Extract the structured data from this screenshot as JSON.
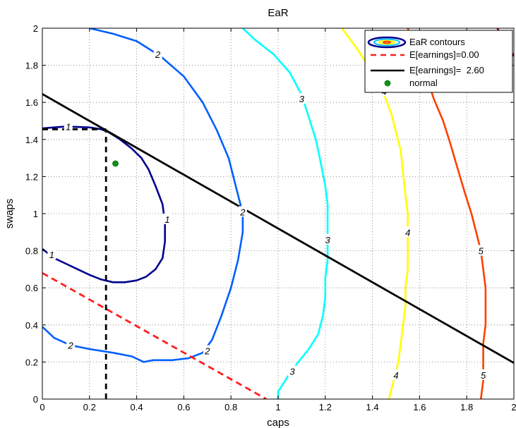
{
  "chart_data": {
    "type": "line",
    "title": "EaR",
    "xlabel": "caps",
    "ylabel": "swaps",
    "xlim": [
      0,
      2
    ],
    "ylim": [
      0,
      2
    ],
    "x_ticks": [
      "0",
      "0.2",
      "0.4",
      "0.6",
      "0.8",
      "1",
      "1.2",
      "1.4",
      "1.6",
      "1.8",
      "2"
    ],
    "y_ticks": [
      "0",
      "0.2",
      "0.4",
      "0.6",
      "0.8",
      "1",
      "1.2",
      "1.4",
      "1.6",
      "1.8",
      "2"
    ],
    "grid": true,
    "legend_position": "top-right",
    "legend": [
      {
        "label": "EaR contours",
        "kind": "contour-icon"
      },
      {
        "label": "E[earnings]=0.00",
        "kind": "dashed",
        "color": "#ff1e1e"
      },
      {
        "label": "E[earnings]=  2.60",
        "kind": "solid",
        "color": "#000000"
      },
      {
        "label": "normal",
        "kind": "dot",
        "color": "#168a1c"
      }
    ],
    "contours": [
      {
        "level": "1",
        "color": "#00008f",
        "points": [
          [
            0,
            0.81
          ],
          [
            0.05,
            0.76
          ],
          [
            0.1,
            0.73
          ],
          [
            0.15,
            0.7
          ],
          [
            0.2,
            0.67
          ],
          [
            0.25,
            0.645
          ],
          [
            0.3,
            0.63
          ],
          [
            0.35,
            0.63
          ],
          [
            0.4,
            0.64
          ],
          [
            0.44,
            0.66
          ],
          [
            0.48,
            0.7
          ],
          [
            0.51,
            0.76
          ],
          [
            0.52,
            0.85
          ],
          [
            0.52,
            0.95
          ],
          [
            0.51,
            1.05
          ],
          [
            0.48,
            1.15
          ],
          [
            0.45,
            1.24
          ],
          [
            0.42,
            1.3
          ],
          [
            0.38,
            1.35
          ],
          [
            0.33,
            1.4
          ],
          [
            0.28,
            1.44
          ],
          [
            0.25,
            1.455
          ],
          [
            0.2,
            1.465
          ],
          [
            0.1,
            1.47
          ],
          [
            0.05,
            1.465
          ],
          [
            0,
            1.46
          ]
        ],
        "labels": [
          {
            "text": "1",
            "x": 0.11,
            "y": 1.47
          },
          {
            "text": "1",
            "x": 0.53,
            "y": 0.97
          },
          {
            "text": "1",
            "x": 0.04,
            "y": 0.78
          }
        ]
      },
      {
        "level": "2",
        "color": "#005fff",
        "points": [
          [
            0.2,
            2.0
          ],
          [
            0.3,
            1.97
          ],
          [
            0.4,
            1.93
          ],
          [
            0.5,
            1.85
          ],
          [
            0.6,
            1.74
          ],
          [
            0.68,
            1.6
          ],
          [
            0.74,
            1.45
          ],
          [
            0.79,
            1.3
          ],
          [
            0.82,
            1.15
          ],
          [
            0.84,
            1.05
          ],
          [
            0.85,
            1.0
          ],
          [
            0.85,
            0.9
          ],
          [
            0.83,
            0.75
          ],
          [
            0.8,
            0.6
          ],
          [
            0.76,
            0.45
          ],
          [
            0.72,
            0.32
          ],
          [
            0.68,
            0.25
          ],
          [
            0.62,
            0.22
          ],
          [
            0.55,
            0.21
          ],
          [
            0.47,
            0.21
          ],
          [
            0.43,
            0.2
          ],
          [
            0.38,
            0.23
          ],
          [
            0.3,
            0.25
          ],
          [
            0.2,
            0.27
          ],
          [
            0.12,
            0.29
          ],
          [
            0.05,
            0.33
          ],
          [
            0,
            0.39
          ]
        ],
        "labels": [
          {
            "text": "2",
            "x": 0.49,
            "y": 1.86
          },
          {
            "text": "2",
            "x": 0.85,
            "y": 1.01
          },
          {
            "text": "2",
            "x": 0.7,
            "y": 0.26
          },
          {
            "text": "2",
            "x": 0.12,
            "y": 0.29
          }
        ]
      },
      {
        "level": "3",
        "color": "#00ffff",
        "points": [
          [
            0.85,
            2.0
          ],
          [
            0.9,
            1.94
          ],
          [
            0.98,
            1.86
          ],
          [
            1.05,
            1.76
          ],
          [
            1.1,
            1.64
          ],
          [
            1.13,
            1.52
          ],
          [
            1.16,
            1.4
          ],
          [
            1.18,
            1.28
          ],
          [
            1.2,
            1.15
          ],
          [
            1.21,
            1.05
          ],
          [
            1.21,
            0.95
          ],
          [
            1.21,
            0.85
          ],
          [
            1.21,
            0.75
          ],
          [
            1.2,
            0.65
          ],
          [
            1.2,
            0.55
          ],
          [
            1.19,
            0.45
          ],
          [
            1.17,
            0.35
          ],
          [
            1.13,
            0.27
          ],
          [
            1.08,
            0.19
          ],
          [
            1.04,
            0.12
          ],
          [
            1.0,
            0.04
          ],
          [
            1.0,
            0.0
          ]
        ],
        "labels": [
          {
            "text": "3",
            "x": 1.1,
            "y": 1.62
          },
          {
            "text": "3",
            "x": 1.21,
            "y": 0.86
          },
          {
            "text": "3",
            "x": 1.06,
            "y": 0.15
          }
        ]
      },
      {
        "level": "4",
        "color": "#ffff00",
        "points": [
          [
            1.27,
            2.0
          ],
          [
            1.3,
            1.95
          ],
          [
            1.34,
            1.88
          ],
          [
            1.38,
            1.8
          ],
          [
            1.42,
            1.72
          ],
          [
            1.45,
            1.64
          ],
          [
            1.48,
            1.54
          ],
          [
            1.5,
            1.44
          ],
          [
            1.52,
            1.34
          ],
          [
            1.53,
            1.22
          ],
          [
            1.54,
            1.1
          ],
          [
            1.55,
            1.0
          ],
          [
            1.55,
            0.9
          ],
          [
            1.55,
            0.8
          ],
          [
            1.55,
            0.7
          ],
          [
            1.54,
            0.6
          ],
          [
            1.54,
            0.5
          ],
          [
            1.53,
            0.4
          ],
          [
            1.52,
            0.3
          ],
          [
            1.51,
            0.2
          ],
          [
            1.49,
            0.1
          ],
          [
            1.47,
            0.0
          ]
        ],
        "labels": [
          {
            "text": "4",
            "x": 1.45,
            "y": 1.66
          },
          {
            "text": "4",
            "x": 1.55,
            "y": 0.9
          },
          {
            "text": "4",
            "x": 1.5,
            "y": 0.13
          }
        ]
      },
      {
        "level": "5",
        "color": "#ff3f00",
        "points": [
          [
            1.55,
            2.0
          ],
          [
            1.57,
            1.93
          ],
          [
            1.6,
            1.84
          ],
          [
            1.63,
            1.74
          ],
          [
            1.66,
            1.62
          ],
          [
            1.7,
            1.5
          ],
          [
            1.73,
            1.38
          ],
          [
            1.76,
            1.25
          ],
          [
            1.79,
            1.12
          ],
          [
            1.82,
            1.0
          ],
          [
            1.84,
            0.9
          ],
          [
            1.86,
            0.8
          ],
          [
            1.87,
            0.7
          ],
          [
            1.88,
            0.6
          ],
          [
            1.88,
            0.5
          ],
          [
            1.88,
            0.4
          ],
          [
            1.87,
            0.3
          ],
          [
            1.87,
            0.2
          ],
          [
            1.87,
            0.1
          ],
          [
            1.86,
            0.0
          ]
        ],
        "labels": [
          {
            "text": "5",
            "x": 1.86,
            "y": 0.8
          },
          {
            "text": "5",
            "x": 1.87,
            "y": 0.13
          }
        ]
      },
      {
        "level": "6",
        "color": "#8f0000",
        "points": [
          [
            1.93,
            2.0
          ],
          [
            1.96,
            1.93
          ],
          [
            2.0,
            1.85
          ]
        ],
        "labels": []
      }
    ],
    "series": [
      {
        "name": "E[earnings]=0.00",
        "color": "#ff1e1e",
        "dash": true,
        "x": [
          0,
          0.95
        ],
        "y": [
          0.68,
          0.0
        ]
      },
      {
        "name": "E[earnings]=  2.60",
        "color": "#000000",
        "dash": false,
        "x": [
          0,
          2
        ],
        "y": [
          1.645,
          0.195
        ]
      }
    ],
    "point": {
      "name": "normal",
      "x": 0.31,
      "y": 1.27,
      "color": "#168a1c"
    },
    "reference_lines": {
      "color": "#000000",
      "horizontal": {
        "x": [
          0,
          0.27
        ],
        "y": 1.455
      },
      "vertical": {
        "x": 0.27,
        "y": [
          0,
          1.455
        ]
      }
    }
  }
}
